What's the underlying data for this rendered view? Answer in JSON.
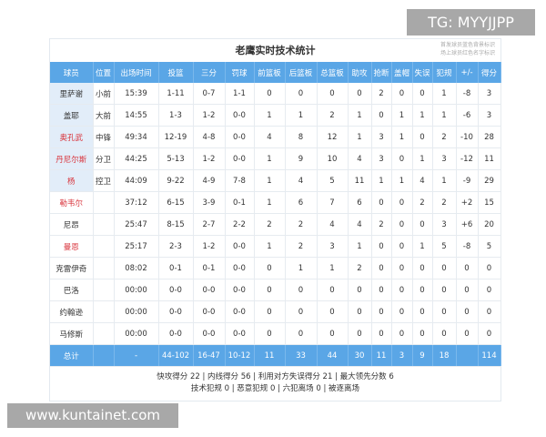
{
  "title": "老鹰实时技术统计",
  "note": [
    "首发球员蓝色背景标识",
    "场上球员红色名字标识"
  ],
  "colors": {
    "header": "#5aa6e6",
    "starter_bg": "#e2edf9",
    "on_court_name": "#d9363e"
  },
  "columns": [
    "球员",
    "位置",
    "出场时间",
    "投篮",
    "三分",
    "罚球",
    "前篮板",
    "后篮板",
    "总篮板",
    "助攻",
    "抢断",
    "盖帽",
    "失误",
    "犯规",
    "+/-",
    "得分"
  ],
  "players": [
    {
      "name": "里萨谢",
      "starter": true,
      "on_court": false,
      "cells": [
        "小前",
        "15:39",
        "1-11",
        "0-7",
        "1-1",
        "0",
        "0",
        "0",
        "0",
        "2",
        "0",
        "0",
        "1",
        "-8",
        "3"
      ]
    },
    {
      "name": "盖耶",
      "starter": true,
      "on_court": false,
      "cells": [
        "大前",
        "14:55",
        "1-3",
        "1-2",
        "0-0",
        "1",
        "1",
        "2",
        "1",
        "0",
        "1",
        "1",
        "1",
        "-6",
        "3"
      ]
    },
    {
      "name": "奥孔武",
      "starter": true,
      "on_court": true,
      "cells": [
        "中锋",
        "49:34",
        "12-19",
        "4-8",
        "0-0",
        "4",
        "8",
        "12",
        "1",
        "3",
        "1",
        "0",
        "2",
        "-10",
        "28"
      ]
    },
    {
      "name": "丹尼尔斯",
      "starter": true,
      "on_court": true,
      "cells": [
        "分卫",
        "44:25",
        "5-13",
        "1-2",
        "0-0",
        "1",
        "9",
        "10",
        "4",
        "3",
        "0",
        "1",
        "3",
        "-12",
        "11"
      ]
    },
    {
      "name": "杨",
      "starter": true,
      "on_court": true,
      "cells": [
        "控卫",
        "44:09",
        "9-22",
        "4-9",
        "7-8",
        "1",
        "4",
        "5",
        "11",
        "1",
        "1",
        "4",
        "1",
        "-9",
        "29"
      ]
    },
    {
      "name": "勒韦尔",
      "starter": false,
      "on_court": true,
      "cells": [
        "",
        "37:12",
        "6-15",
        "3-9",
        "0-1",
        "1",
        "6",
        "7",
        "6",
        "0",
        "0",
        "2",
        "2",
        "+2",
        "15"
      ]
    },
    {
      "name": "尼昂",
      "starter": false,
      "on_court": false,
      "cells": [
        "",
        "25:47",
        "8-15",
        "2-7",
        "2-2",
        "2",
        "2",
        "4",
        "4",
        "2",
        "0",
        "0",
        "3",
        "+6",
        "20"
      ]
    },
    {
      "name": "曼恩",
      "starter": false,
      "on_court": true,
      "cells": [
        "",
        "25:17",
        "2-3",
        "1-2",
        "0-0",
        "1",
        "2",
        "3",
        "1",
        "0",
        "0",
        "1",
        "5",
        "-8",
        "5"
      ]
    },
    {
      "name": "克雷伊奇",
      "starter": false,
      "on_court": false,
      "cells": [
        "",
        "08:02",
        "0-1",
        "0-1",
        "0-0",
        "0",
        "1",
        "1",
        "2",
        "0",
        "0",
        "0",
        "0",
        "0",
        "0"
      ]
    },
    {
      "name": "巴洛",
      "starter": false,
      "on_court": false,
      "cells": [
        "",
        "00:00",
        "0-0",
        "0-0",
        "0-0",
        "0",
        "0",
        "0",
        "0",
        "0",
        "0",
        "0",
        "0",
        "0",
        "0"
      ]
    },
    {
      "name": "约翰逊",
      "starter": false,
      "on_court": false,
      "cells": [
        "",
        "00:00",
        "0-0",
        "0-0",
        "0-0",
        "0",
        "0",
        "0",
        "0",
        "0",
        "0",
        "0",
        "0",
        "0",
        "0"
      ]
    },
    {
      "name": "马修斯",
      "starter": false,
      "on_court": false,
      "cells": [
        "",
        "00:00",
        "0-0",
        "0-0",
        "0-0",
        "0",
        "0",
        "0",
        "0",
        "0",
        "0",
        "0",
        "0",
        "0",
        "0"
      ]
    }
  ],
  "total": {
    "label": "总计",
    "cells": [
      "",
      "-",
      "44-102",
      "16-47",
      "10-12",
      "11",
      "33",
      "44",
      "30",
      "11",
      "3",
      "9",
      "18",
      "",
      "114"
    ]
  },
  "footer": {
    "line1": "快攻得分 22 | 内线得分 56 | 利用对方失误得分 21 | 最大领先分数 6",
    "line2": "技术犯规 0 | 恶意犯规 0 | 六犯离场 0 | 被逐离场"
  },
  "watermarks": {
    "tg": "TG: MYYJJPP",
    "site": "www.kuntainet.com"
  }
}
